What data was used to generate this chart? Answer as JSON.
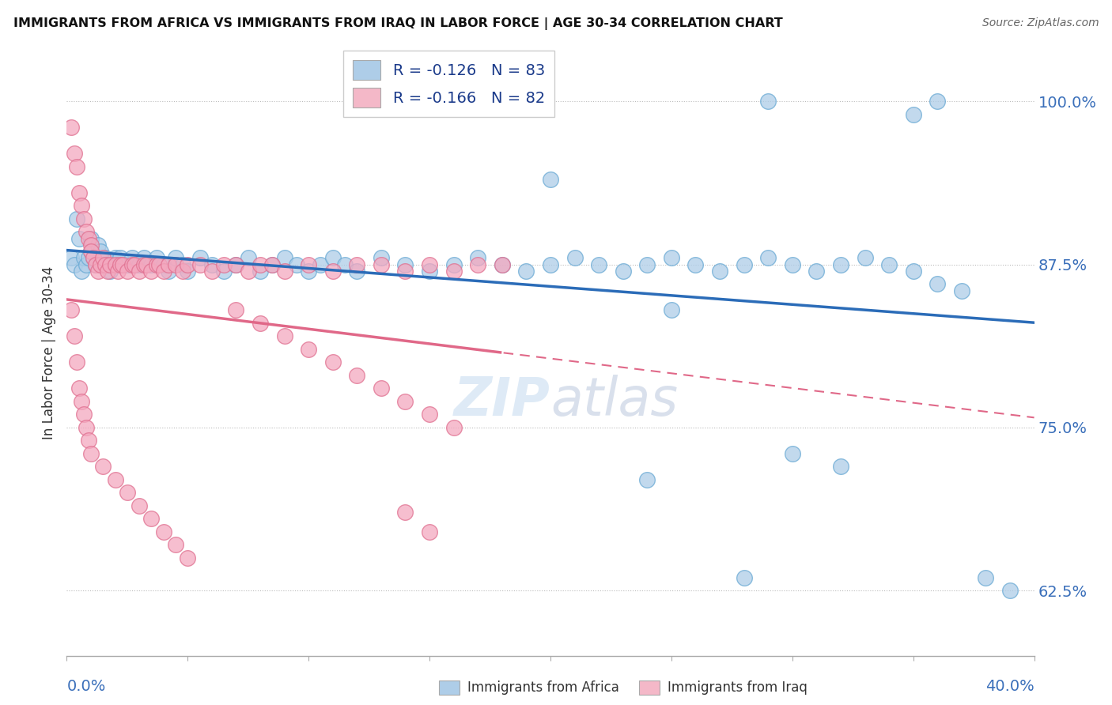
{
  "title": "IMMIGRANTS FROM AFRICA VS IMMIGRANTS FROM IRAQ IN LABOR FORCE | AGE 30-34 CORRELATION CHART",
  "source": "Source: ZipAtlas.com",
  "ylabel": "In Labor Force | Age 30-34",
  "ytick_vals": [
    0.625,
    0.75,
    0.875,
    1.0
  ],
  "ytick_labels": [
    "62.5%",
    "75.0%",
    "87.5%",
    "100.0%"
  ],
  "xlim": [
    0.0,
    0.4
  ],
  "ylim": [
    0.575,
    1.04
  ],
  "africa_color": "#aecde8",
  "iraq_color": "#f4a8bf",
  "africa_edge": "#6aaad4",
  "iraq_edge": "#e07090",
  "africa_R": -0.126,
  "africa_N": 83,
  "iraq_R": -0.166,
  "iraq_N": 82,
  "legend_box_africa": "#aecde8",
  "legend_box_iraq": "#f4b8c8",
  "africa_line_color": "#2b6cb8",
  "iraq_line_color": "#e06888",
  "watermark": "ZIPatlas",
  "africa_x": [
    0.002,
    0.003,
    0.004,
    0.005,
    0.006,
    0.007,
    0.008,
    0.009,
    0.01,
    0.01,
    0.011,
    0.012,
    0.013,
    0.014,
    0.015,
    0.016,
    0.017,
    0.018,
    0.02,
    0.021,
    0.022,
    0.025,
    0.027,
    0.028,
    0.03,
    0.032,
    0.035,
    0.037,
    0.04,
    0.042,
    0.045,
    0.048,
    0.05,
    0.055,
    0.06,
    0.065,
    0.07,
    0.075,
    0.08,
    0.085,
    0.09,
    0.095,
    0.1,
    0.105,
    0.11,
    0.115,
    0.12,
    0.13,
    0.14,
    0.15,
    0.16,
    0.17,
    0.18,
    0.19,
    0.2,
    0.21,
    0.22,
    0.23,
    0.24,
    0.25,
    0.26,
    0.27,
    0.28,
    0.29,
    0.3,
    0.31,
    0.32,
    0.33,
    0.34,
    0.35,
    0.36,
    0.37,
    0.29,
    0.35,
    0.36,
    0.2,
    0.25,
    0.3,
    0.32,
    0.24,
    0.28,
    0.38,
    0.39
  ],
  "africa_y": [
    0.88,
    0.875,
    0.91,
    0.895,
    0.87,
    0.88,
    0.875,
    0.88,
    0.895,
    0.885,
    0.88,
    0.875,
    0.89,
    0.885,
    0.875,
    0.88,
    0.875,
    0.87,
    0.88,
    0.875,
    0.88,
    0.875,
    0.88,
    0.875,
    0.875,
    0.88,
    0.875,
    0.88,
    0.875,
    0.87,
    0.88,
    0.875,
    0.87,
    0.88,
    0.875,
    0.87,
    0.875,
    0.88,
    0.87,
    0.875,
    0.88,
    0.875,
    0.87,
    0.875,
    0.88,
    0.875,
    0.87,
    0.88,
    0.875,
    0.87,
    0.875,
    0.88,
    0.875,
    0.87,
    0.875,
    0.88,
    0.875,
    0.87,
    0.875,
    0.88,
    0.875,
    0.87,
    0.875,
    0.88,
    0.875,
    0.87,
    0.875,
    0.88,
    0.875,
    0.87,
    0.86,
    0.855,
    1.0,
    0.99,
    1.0,
    0.94,
    0.84,
    0.73,
    0.72,
    0.71,
    0.635,
    0.635,
    0.625
  ],
  "iraq_x": [
    0.002,
    0.003,
    0.004,
    0.005,
    0.006,
    0.007,
    0.008,
    0.009,
    0.01,
    0.01,
    0.011,
    0.012,
    0.013,
    0.014,
    0.015,
    0.016,
    0.017,
    0.018,
    0.02,
    0.021,
    0.022,
    0.023,
    0.025,
    0.027,
    0.028,
    0.03,
    0.032,
    0.033,
    0.035,
    0.037,
    0.038,
    0.04,
    0.042,
    0.045,
    0.048,
    0.05,
    0.055,
    0.06,
    0.065,
    0.07,
    0.075,
    0.08,
    0.085,
    0.09,
    0.1,
    0.11,
    0.12,
    0.13,
    0.14,
    0.15,
    0.16,
    0.17,
    0.18,
    0.07,
    0.08,
    0.09,
    0.1,
    0.11,
    0.12,
    0.13,
    0.14,
    0.15,
    0.16,
    0.002,
    0.003,
    0.004,
    0.005,
    0.006,
    0.007,
    0.008,
    0.009,
    0.01,
    0.015,
    0.02,
    0.025,
    0.03,
    0.035,
    0.04,
    0.045,
    0.05,
    0.14,
    0.15
  ],
  "iraq_y": [
    0.98,
    0.96,
    0.95,
    0.93,
    0.92,
    0.91,
    0.9,
    0.895,
    0.89,
    0.885,
    0.88,
    0.875,
    0.87,
    0.875,
    0.88,
    0.875,
    0.87,
    0.875,
    0.875,
    0.87,
    0.875,
    0.875,
    0.87,
    0.875,
    0.875,
    0.87,
    0.875,
    0.875,
    0.87,
    0.875,
    0.875,
    0.87,
    0.875,
    0.875,
    0.87,
    0.875,
    0.875,
    0.87,
    0.875,
    0.875,
    0.87,
    0.875,
    0.875,
    0.87,
    0.875,
    0.87,
    0.875,
    0.875,
    0.87,
    0.875,
    0.87,
    0.875,
    0.875,
    0.84,
    0.83,
    0.82,
    0.81,
    0.8,
    0.79,
    0.78,
    0.77,
    0.76,
    0.75,
    0.84,
    0.82,
    0.8,
    0.78,
    0.77,
    0.76,
    0.75,
    0.74,
    0.73,
    0.72,
    0.71,
    0.7,
    0.69,
    0.68,
    0.67,
    0.66,
    0.65,
    0.685,
    0.67
  ]
}
